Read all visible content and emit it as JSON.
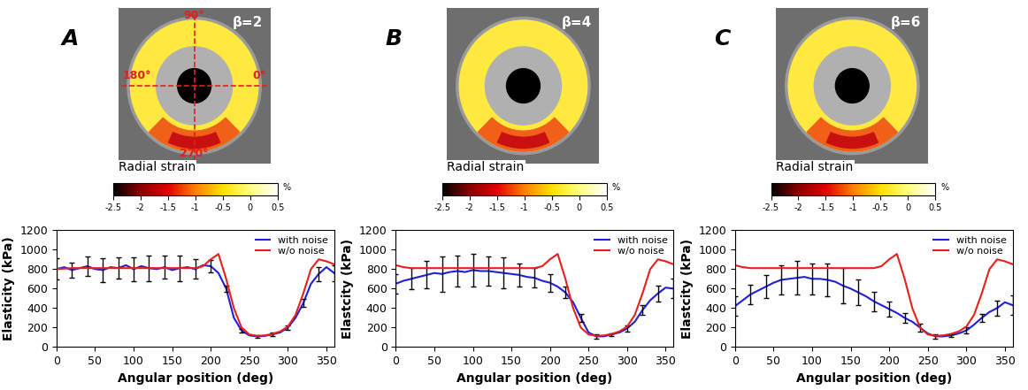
{
  "images": [
    {
      "panel": "A",
      "beta_label": "β=2",
      "angle_labels": [
        "90°",
        "180°",
        "0°",
        "270°"
      ],
      "colorbar": {
        "title": "Radial strain",
        "unit": "%",
        "range": [
          -2.5,
          0.5
        ],
        "ticks": [
          -2.5,
          -2,
          -1.5,
          -1,
          -0.5,
          0,
          0.5
        ]
      }
    },
    {
      "panel": "B",
      "beta_label": "β=4",
      "colorbar": {
        "title": "Radial strain",
        "unit": "%",
        "range": [
          -2.5,
          0.5
        ],
        "ticks": [
          -2.5,
          -2,
          -1.5,
          -1,
          -0.5,
          0,
          0.5
        ]
      }
    },
    {
      "panel": "C",
      "beta_label": "β=6",
      "colorbar": {
        "title": "Radial strain",
        "unit": "%",
        "range": [
          -2.5,
          0.5
        ],
        "ticks": [
          -2.5,
          -2,
          -1.5,
          -1,
          -0.5,
          0,
          0.5
        ]
      }
    }
  ],
  "chart_data": [
    {
      "type": "line",
      "x_label": "Angular position (deg)",
      "y_label": "Elasticity (kPa)",
      "xlim": [
        0,
        360
      ],
      "xticks": [
        0,
        50,
        100,
        150,
        200,
        250,
        300,
        350
      ],
      "ylim": [
        0,
        1200
      ],
      "yticks": [
        0,
        200,
        400,
        600,
        800,
        1000,
        1200
      ],
      "legend": "upper right",
      "x": [
        0,
        10,
        20,
        30,
        40,
        50,
        60,
        70,
        80,
        90,
        100,
        110,
        120,
        130,
        140,
        150,
        160,
        170,
        180,
        190,
        200,
        210,
        220,
        230,
        240,
        250,
        260,
        270,
        280,
        290,
        300,
        310,
        320,
        330,
        340,
        350,
        360
      ],
      "series": [
        {
          "name": "with noise",
          "color": "#1f1fdc",
          "values": [
            800,
            820,
            790,
            810,
            830,
            800,
            790,
            820,
            810,
            840,
            800,
            830,
            810,
            800,
            820,
            790,
            810,
            820,
            800,
            840,
            830,
            760,
            600,
            300,
            170,
            120,
            110,
            115,
            130,
            150,
            200,
            300,
            450,
            650,
            750,
            820,
            760
          ],
          "errors": [
            110,
            null,
            80,
            null,
            100,
            null,
            120,
            null,
            110,
            null,
            120,
            null,
            130,
            null,
            120,
            null,
            130,
            null,
            100,
            null,
            60,
            null,
            30,
            null,
            20,
            null,
            15,
            null,
            20,
            null,
            25,
            null,
            40,
            null,
            70,
            null,
            80
          ]
        },
        {
          "name": "w/o noise",
          "color": "#e8201c",
          "values": [
            800,
            805,
            810,
            810,
            810,
            810,
            810,
            810,
            810,
            810,
            810,
            810,
            810,
            810,
            810,
            810,
            810,
            810,
            810,
            830,
            900,
            955,
            700,
            400,
            200,
            130,
            115,
            120,
            135,
            160,
            210,
            330,
            550,
            800,
            900,
            880,
            850
          ]
        }
      ]
    },
    {
      "type": "line",
      "x_label": "Angular position (deg)",
      "y_label": "Elastcity (kPa)",
      "xlim": [
        0,
        360
      ],
      "xticks": [
        0,
        50,
        100,
        150,
        200,
        250,
        300,
        350
      ],
      "ylim": [
        0,
        1200
      ],
      "yticks": [
        0,
        200,
        400,
        600,
        800,
        1000,
        1200
      ],
      "legend": "upper right",
      "x": [
        0,
        10,
        20,
        30,
        40,
        50,
        60,
        70,
        80,
        90,
        100,
        110,
        120,
        130,
        140,
        150,
        160,
        170,
        180,
        190,
        200,
        210,
        220,
        230,
        240,
        250,
        260,
        270,
        280,
        290,
        300,
        310,
        320,
        330,
        340,
        350,
        360
      ],
      "series": [
        {
          "name": "with noise",
          "color": "#1f1fdc",
          "values": [
            650,
            680,
            700,
            720,
            740,
            760,
            750,
            770,
            780,
            770,
            790,
            780,
            780,
            770,
            760,
            750,
            740,
            720,
            710,
            680,
            660,
            620,
            560,
            460,
            300,
            150,
            110,
            110,
            130,
            150,
            190,
            260,
            380,
            480,
            550,
            610,
            600
          ],
          "errors": [
            100,
            null,
            110,
            null,
            140,
            null,
            180,
            null,
            160,
            null,
            170,
            null,
            150,
            null,
            160,
            null,
            120,
            null,
            100,
            null,
            90,
            null,
            60,
            null,
            40,
            null,
            20,
            null,
            15,
            null,
            30,
            null,
            50,
            null,
            80,
            null,
            100
          ]
        },
        {
          "name": "w/o noise",
          "color": "#e8201c",
          "values": [
            840,
            820,
            810,
            810,
            810,
            810,
            810,
            810,
            810,
            810,
            810,
            810,
            810,
            810,
            810,
            810,
            810,
            810,
            810,
            830,
            900,
            955,
            700,
            400,
            200,
            130,
            115,
            120,
            135,
            160,
            210,
            330,
            550,
            800,
            900,
            880,
            850
          ]
        }
      ]
    },
    {
      "type": "line",
      "x_label": "Angular position (deg)",
      "y_label": "Elastcity (kPa)",
      "xlim": [
        0,
        360
      ],
      "xticks": [
        0,
        50,
        100,
        150,
        200,
        250,
        300,
        350
      ],
      "ylim": [
        0,
        1200
      ],
      "yticks": [
        0,
        200,
        400,
        600,
        800,
        1000,
        1200
      ],
      "legend": "upper right",
      "x": [
        0,
        10,
        20,
        30,
        40,
        50,
        60,
        70,
        80,
        90,
        100,
        110,
        120,
        130,
        140,
        150,
        160,
        170,
        180,
        190,
        200,
        210,
        220,
        230,
        240,
        250,
        260,
        270,
        280,
        290,
        300,
        310,
        320,
        330,
        340,
        350,
        360
      ],
      "series": [
        {
          "name": "with noise",
          "color": "#1f1fdc",
          "values": [
            420,
            480,
            540,
            580,
            620,
            660,
            690,
            700,
            710,
            720,
            700,
            700,
            690,
            670,
            630,
            600,
            560,
            520,
            470,
            430,
            390,
            350,
            300,
            260,
            200,
            140,
            110,
            110,
            120,
            140,
            170,
            230,
            300,
            360,
            400,
            460,
            430
          ],
          "errors": [
            100,
            null,
            100,
            null,
            120,
            null,
            150,
            null,
            170,
            null,
            160,
            null,
            170,
            null,
            180,
            null,
            130,
            null,
            100,
            null,
            80,
            null,
            50,
            null,
            40,
            null,
            20,
            null,
            15,
            null,
            30,
            null,
            40,
            null,
            80,
            null,
            100
          ]
        },
        {
          "name": "w/o noise",
          "color": "#e8201c",
          "values": [
            840,
            820,
            810,
            810,
            810,
            810,
            810,
            810,
            810,
            810,
            810,
            810,
            810,
            810,
            810,
            810,
            810,
            810,
            810,
            830,
            900,
            955,
            700,
            400,
            200,
            130,
            115,
            120,
            135,
            160,
            210,
            330,
            550,
            800,
            900,
            880,
            850
          ]
        }
      ]
    }
  ]
}
